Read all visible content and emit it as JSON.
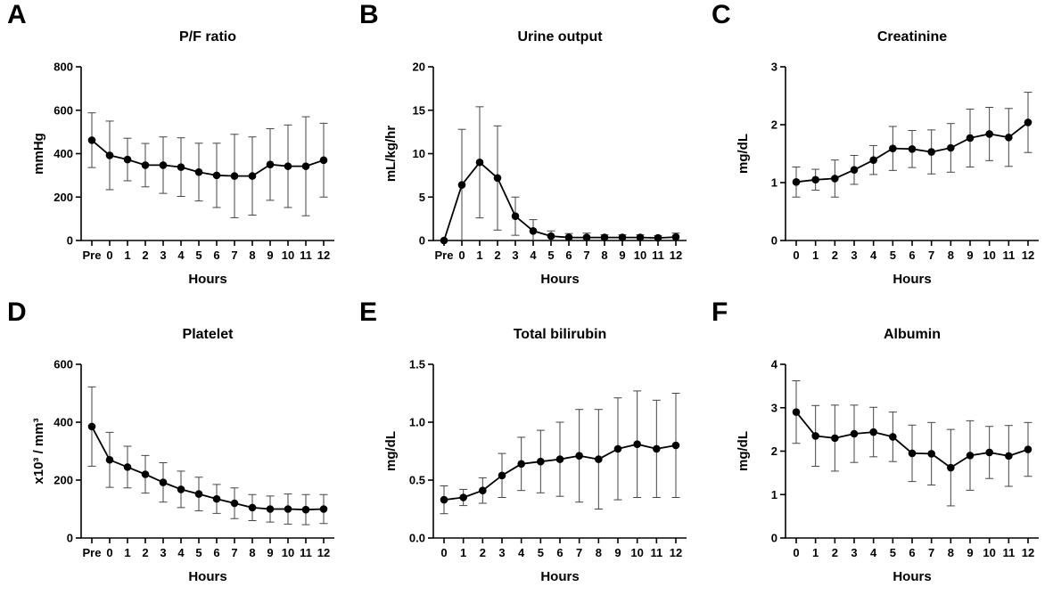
{
  "chart_data": [
    {
      "panel_label": "A",
      "type": "line",
      "title": "P/F ratio",
      "xlabel": "Hours",
      "ylabel": "mmHg",
      "categories": [
        "Pre",
        "0",
        "1",
        "2",
        "3",
        "4",
        "5",
        "6",
        "7",
        "8",
        "9",
        "10",
        "11",
        "12"
      ],
      "ylim": [
        0,
        800
      ],
      "yticks": [
        0,
        200,
        400,
        600,
        800
      ],
      "yticklabels": [
        "0",
        "200",
        "400",
        "600",
        "800"
      ],
      "series": [
        {
          "mean": [
            462,
            392,
            373,
            347,
            347,
            338,
            315,
            300,
            297,
            297,
            350,
            342,
            342,
            370
          ],
          "err": [
            126,
            158,
            98,
            100,
            130,
            135,
            133,
            148,
            192,
            180,
            165,
            190,
            228,
            170
          ]
        }
      ]
    },
    {
      "panel_label": "B",
      "type": "line",
      "title": "Urine output",
      "xlabel": "Hours",
      "ylabel": "mL/kg/hr",
      "categories": [
        "Pre",
        "0",
        "1",
        "2",
        "3",
        "4",
        "5",
        "6",
        "7",
        "8",
        "9",
        "10",
        "11",
        "12"
      ],
      "ylim": [
        0,
        20
      ],
      "yticks": [
        0,
        5,
        10,
        15,
        20
      ],
      "yticklabels": [
        "0",
        "5",
        "10",
        "15",
        "20"
      ],
      "series": [
        {
          "mean": [
            0,
            6.4,
            9.0,
            7.2,
            2.8,
            1.1,
            0.5,
            0.35,
            0.35,
            0.35,
            0.35,
            0.35,
            0.3,
            0.4
          ],
          "err": [
            0,
            6.4,
            6.4,
            6.0,
            2.2,
            1.3,
            0.6,
            0.45,
            0.5,
            0.3,
            0.3,
            0.3,
            0.25,
            0.45
          ]
        }
      ]
    },
    {
      "panel_label": "C",
      "type": "line",
      "title": "Creatinine",
      "xlabel": "Hours",
      "ylabel": "mg/dL",
      "categories": [
        "0",
        "1",
        "2",
        "3",
        "4",
        "5",
        "6",
        "7",
        "8",
        "9",
        "10",
        "11",
        "12"
      ],
      "ylim": [
        0,
        3
      ],
      "yticks": [
        0,
        1,
        2,
        3
      ],
      "yticklabels": [
        "0",
        "1",
        "2",
        "3"
      ],
      "series": [
        {
          "mean": [
            1.01,
            1.05,
            1.07,
            1.22,
            1.39,
            1.59,
            1.58,
            1.53,
            1.6,
            1.77,
            1.84,
            1.78,
            2.04
          ],
          "err": [
            0.26,
            0.18,
            0.32,
            0.25,
            0.25,
            0.38,
            0.32,
            0.38,
            0.42,
            0.5,
            0.46,
            0.5,
            0.52
          ]
        }
      ]
    },
    {
      "panel_label": "D",
      "type": "line",
      "title": "Platelet",
      "xlabel": "Hours",
      "ylabel": "x10³ / mm³",
      "categories": [
        "Pre",
        "0",
        "1",
        "2",
        "3",
        "4",
        "5",
        "6",
        "7",
        "8",
        "9",
        "10",
        "11",
        "12"
      ],
      "ylim": [
        0,
        600
      ],
      "yticks": [
        0,
        200,
        400,
        600
      ],
      "yticklabels": [
        "0",
        "200",
        "400",
        "600"
      ],
      "series": [
        {
          "mean": [
            385,
            270,
            245,
            220,
            192,
            168,
            152,
            135,
            120,
            105,
            100,
            100,
            98,
            100
          ],
          "err": [
            137,
            95,
            72,
            65,
            68,
            63,
            58,
            50,
            53,
            45,
            45,
            52,
            52,
            50
          ]
        }
      ]
    },
    {
      "panel_label": "E",
      "type": "line",
      "title": "Total bilirubin",
      "xlabel": "Hours",
      "ylabel": "mg/dL",
      "categories": [
        "0",
        "1",
        "2",
        "3",
        "4",
        "5",
        "6",
        "7",
        "8",
        "9",
        "10",
        "11",
        "12"
      ],
      "ylim": [
        0,
        1.5
      ],
      "yticks": [
        0,
        0.5,
        1.0,
        1.5
      ],
      "yticklabels": [
        "0.0",
        "0.5",
        "1.0",
        "1.5"
      ],
      "series": [
        {
          "mean": [
            0.33,
            0.35,
            0.41,
            0.54,
            0.64,
            0.66,
            0.68,
            0.71,
            0.68,
            0.77,
            0.81,
            0.77,
            0.8
          ],
          "err": [
            0.12,
            0.07,
            0.11,
            0.19,
            0.23,
            0.27,
            0.32,
            0.4,
            0.43,
            0.44,
            0.46,
            0.42,
            0.45
          ]
        }
      ]
    },
    {
      "panel_label": "F",
      "type": "line",
      "title": "Albumin",
      "xlabel": "Hours",
      "ylabel": "mg/dL",
      "categories": [
        "0",
        "1",
        "2",
        "3",
        "4",
        "5",
        "6",
        "7",
        "8",
        "9",
        "10",
        "11",
        "12"
      ],
      "ylim": [
        0,
        4
      ],
      "yticks": [
        0,
        1,
        2,
        3,
        4
      ],
      "yticklabels": [
        "0",
        "1",
        "2",
        "3",
        "4"
      ],
      "series": [
        {
          "mean": [
            2.9,
            2.35,
            2.3,
            2.4,
            2.44,
            2.33,
            1.95,
            1.94,
            1.62,
            1.9,
            1.97,
            1.89,
            2.04
          ],
          "err": [
            0.72,
            0.7,
            0.76,
            0.66,
            0.57,
            0.57,
            0.65,
            0.72,
            0.88,
            0.8,
            0.6,
            0.7,
            0.62
          ]
        }
      ]
    }
  ]
}
